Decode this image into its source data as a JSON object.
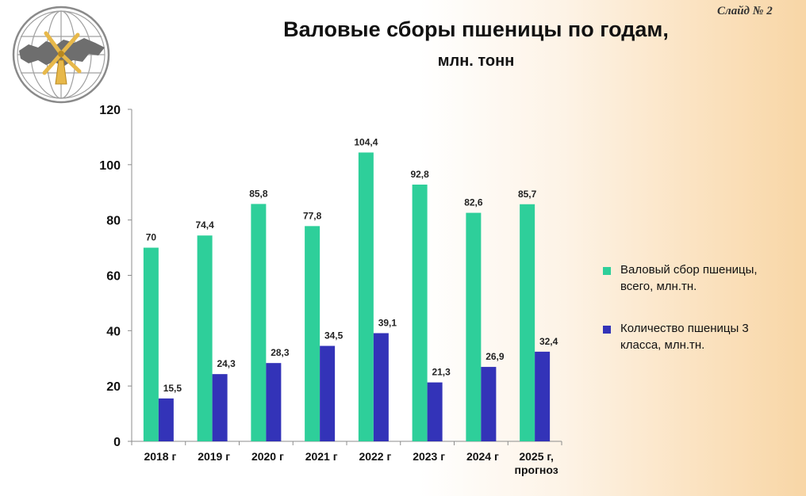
{
  "slide_label": "Слайд № 2",
  "title": "Валовые сборы пшеницы по годам,",
  "subtitle": "млн. тонн",
  "logo_icon": "globe-windmill-logo",
  "colors": {
    "total": "#2ecf9a",
    "class3": "#3333b8"
  },
  "chart_data": {
    "type": "bar",
    "title": "Валовые сборы пшеницы по годам, млн. тонн",
    "categories": [
      [
        "2018 г"
      ],
      [
        "2019 г"
      ],
      [
        "2020 г"
      ],
      [
        "2021 г"
      ],
      [
        "2022 г"
      ],
      [
        "2023 г"
      ],
      [
        "2024 г"
      ],
      [
        "2025 г,",
        "прогноз"
      ]
    ],
    "series": [
      {
        "name": "Валовый сбор пшеницы, всего, млн.тн.",
        "legend_lines": [
          "Валовый сбор пшеницы,",
          "всего, млн.тн."
        ],
        "values": [
          70,
          74.4,
          85.8,
          77.8,
          104.4,
          92.8,
          82.6,
          85.7
        ],
        "labels": [
          "70",
          "74,4",
          "85,8",
          "77,8",
          "104,4",
          "92,8",
          "82,6",
          "85,7"
        ]
      },
      {
        "name": "Количество пшеницы 3 класса, млн.тн.",
        "legend_lines": [
          "Количество пшеницы 3",
          "класса, млн.тн."
        ],
        "values": [
          15.5,
          24.3,
          28.3,
          34.5,
          39.1,
          21.3,
          26.9,
          32.4
        ],
        "labels": [
          "15,5",
          "24,3",
          "28,3",
          "34,5",
          "39,1",
          "21,3",
          "26,9",
          "32,4"
        ]
      }
    ],
    "ylim": [
      0,
      120
    ],
    "yticks": [
      0,
      20,
      40,
      60,
      80,
      100,
      120
    ],
    "xlabel": "",
    "ylabel": "",
    "grid": false,
    "legend_position": "right"
  }
}
